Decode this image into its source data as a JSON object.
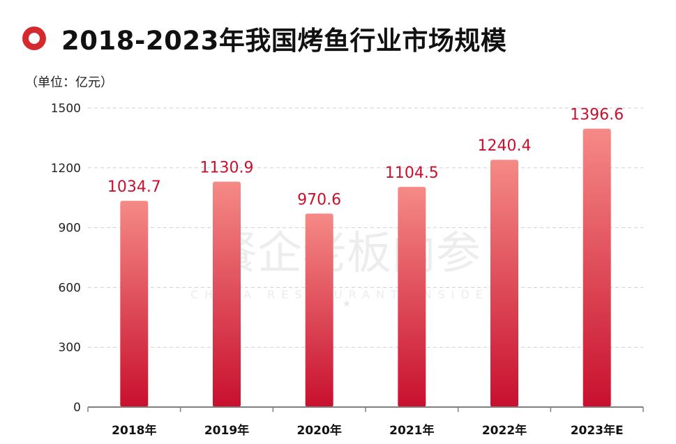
{
  "title": "2018-2023年我国烤鱼行业市场规模",
  "unit_label": "（单位：亿元）",
  "watermark": {
    "main": "餐企老板内参",
    "sub": "CHINA RESTAURANT INSIDER"
  },
  "colors": {
    "accent": "#d42a2e",
    "bar_top": "#f58a86",
    "bar_bottom": "#c8102e",
    "value_text": "#c8102e",
    "grid": "#cfcfcf",
    "axis": "#7f7f7f"
  },
  "chart_data": {
    "type": "bar",
    "title": "2018-2023年我国烤鱼行业市场规模",
    "ylabel": "（单位：亿元）",
    "categories": [
      "2018年",
      "2019年",
      "2020年",
      "2021年",
      "2022年",
      "2023年E"
    ],
    "values": [
      1034.7,
      1130.9,
      970.6,
      1104.5,
      1240.4,
      1396.6
    ],
    "value_labels": [
      "1034.7",
      "1130.9",
      "970.6",
      "1104.5",
      "1240.4",
      "1396.6"
    ],
    "yticks": [
      0,
      300,
      600,
      900,
      1200,
      1500
    ],
    "ylim": [
      0,
      1500
    ],
    "grid": true,
    "legend": "none"
  }
}
